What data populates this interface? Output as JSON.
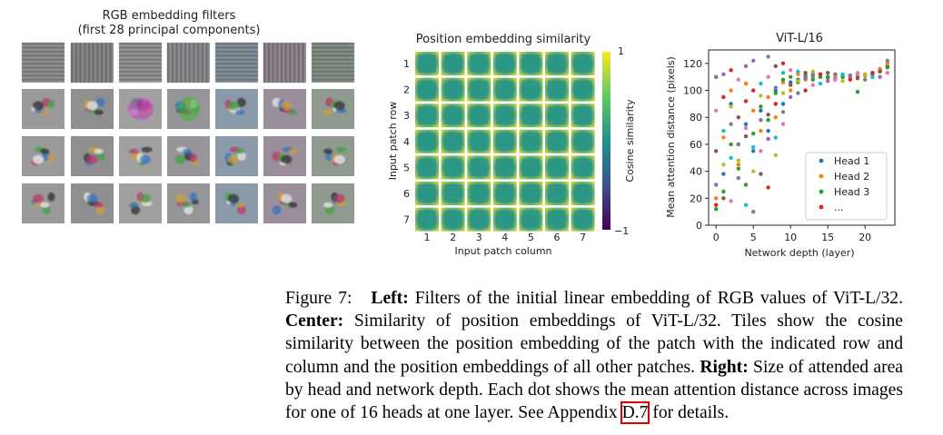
{
  "left": {
    "title_line1": "RGB embedding filters",
    "title_line2": "(first 28 principal components)"
  },
  "center": {
    "title": "Position embedding similarity",
    "ylabel": "Input patch row",
    "xlabel": "Input patch column",
    "ticks": [
      "1",
      "2",
      "3",
      "4",
      "5",
      "6",
      "7"
    ],
    "colorbar_label": "Cosine similarity",
    "colorbar_max": "1",
    "colorbar_min": "−1"
  },
  "chart_data": {
    "type": "scatter",
    "title": "ViT-L/16",
    "xlabel": "Network depth (layer)",
    "ylabel": "Mean attention distance (pixels)",
    "xlim": [
      -1,
      24
    ],
    "ylim": [
      0,
      130
    ],
    "xticks": [
      "0",
      "5",
      "10",
      "15",
      "20"
    ],
    "yticks": [
      "0",
      "20",
      "40",
      "60",
      "80",
      "100",
      "120"
    ],
    "legend": [
      "Head 1",
      "Head 2",
      "Head 3",
      "..."
    ],
    "legend_position": "lower-right",
    "colors": [
      "#1f77b4",
      "#ff7f0e",
      "#2ca02c",
      "#d62728",
      "#9467bd",
      "#8c564b",
      "#e377c2",
      "#7f7f7f",
      "#bcbd22",
      "#17becf"
    ],
    "series": [
      {
        "name": "Head 1",
        "x": [
          0,
          1,
          2,
          3,
          4,
          5,
          6,
          7,
          8,
          9,
          10,
          11,
          12,
          13,
          14,
          15,
          16,
          17,
          18,
          19,
          20,
          21,
          22,
          23
        ],
        "y": [
          110,
          38,
          90,
          60,
          75,
          55,
          85,
          70,
          100,
          90,
          106,
          108,
          110,
          112,
          110,
          110,
          109,
          110,
          111,
          110,
          111,
          112,
          115,
          118
        ]
      },
      {
        "name": "Head 2",
        "x": [
          0,
          1,
          2,
          3,
          4,
          5,
          6,
          7,
          8,
          9,
          10,
          11,
          12,
          13,
          14,
          15,
          16,
          17,
          18,
          19,
          20,
          21,
          22,
          23
        ],
        "y": [
          20,
          65,
          100,
          45,
          105,
          85,
          70,
          95,
          80,
          106,
          100,
          112,
          108,
          110,
          112,
          109,
          111,
          110,
          110,
          112,
          111,
          113,
          116,
          120
        ]
      },
      {
        "name": "Head 3",
        "x": [
          0,
          1,
          2,
          3,
          4,
          5,
          6,
          7,
          8,
          9,
          10,
          11,
          12,
          13,
          14,
          15,
          16,
          17,
          18,
          19,
          20,
          21,
          22,
          23
        ],
        "y": [
          12,
          25,
          60,
          42,
          30,
          68,
          88,
          78,
          98,
          108,
          110,
          106,
          111,
          108,
          110,
          110,
          108,
          110,
          111,
          99,
          112,
          110,
          114,
          117
        ]
      },
      {
        "name": "...",
        "x": [
          0,
          0,
          0,
          0,
          0,
          1,
          1,
          1,
          1,
          1,
          2,
          2,
          2,
          2,
          2,
          3,
          3,
          3,
          3,
          3,
          4,
          4,
          4,
          4,
          4,
          5,
          5,
          5,
          5,
          5,
          6,
          6,
          6,
          6,
          6,
          7,
          7,
          7,
          7,
          7,
          8,
          8,
          8,
          8,
          8,
          9,
          9,
          9,
          9,
          9,
          10,
          10,
          10,
          11,
          11,
          11,
          12,
          12,
          12,
          13,
          13,
          13,
          14,
          14,
          15,
          15,
          16,
          16,
          17,
          17,
          18,
          18,
          19,
          19,
          20,
          20,
          21,
          21,
          22,
          22,
          23,
          23
        ],
        "y": [
          15,
          30,
          55,
          85,
          110,
          45,
          70,
          95,
          112,
          20,
          18,
          75,
          88,
          50,
          115,
          35,
          80,
          108,
          60,
          48,
          15,
          92,
          118,
          66,
          72,
          10,
          40,
          58,
          100,
          122,
          38,
          55,
          78,
          96,
          105,
          28,
          64,
          82,
          110,
          125,
          52,
          65,
          90,
          102,
          118,
          75,
          84,
          98,
          113,
          120,
          95,
          104,
          115,
          98,
          107,
          114,
          100,
          109,
          113,
          104,
          111,
          114,
          105,
          112,
          107,
          113,
          108,
          112,
          107,
          112,
          108,
          111,
          109,
          113,
          108,
          112,
          110,
          113,
          110,
          114,
          113,
          122
        ]
      }
    ]
  },
  "caption": {
    "fig": "Figure 7:",
    "left_label": "Left:",
    "left_text": "Filters of the initial linear embedding of RGB values of ViT-L/32.",
    "center_label": "Center:",
    "center_text": "Similarity of position embeddings of ViT-L/32. Tiles show the cosine similarity between the position embedding of the patch with the indicated row and column and the position embeddings of all other patches.",
    "right_label": "Right:",
    "right_text": "Size of attended area by head and network depth. Each dot shows the mean attention distance across images for one of 16 heads at one layer. See Appendix",
    "ref": "D.7",
    "end": "for details."
  }
}
